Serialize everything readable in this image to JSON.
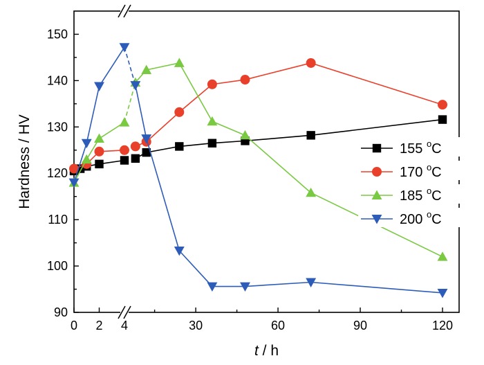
{
  "chart_data": {
    "type": "line",
    "xlabel_italic": "t",
    "xlabel_rest": " / h",
    "ylabel": "Hardness / HV",
    "ylim": [
      90,
      155
    ],
    "yticks": [
      90,
      100,
      110,
      120,
      130,
      140,
      150
    ],
    "x_axis_segments": [
      {
        "range": [
          0,
          4
        ],
        "ticks": [
          0,
          2,
          4
        ]
      },
      {
        "range": [
          4,
          120
        ],
        "ticks": [
          30,
          60,
          90,
          120
        ]
      }
    ],
    "axis_break": "//",
    "grid": false,
    "legend_position": "right",
    "series": [
      {
        "name": "155",
        "unit_sup": "o",
        "unit": "C",
        "color": "#000000",
        "marker": "square",
        "points": [
          [
            0,
            120.5
          ],
          [
            0.5,
            121
          ],
          [
            1,
            121.5
          ],
          [
            2,
            122
          ],
          [
            4,
            122.8
          ],
          [
            8,
            123.2
          ],
          [
            12,
            124.5
          ],
          [
            24,
            125.8
          ],
          [
            36,
            126.5
          ],
          [
            48,
            127
          ],
          [
            72,
            128.2
          ],
          [
            120,
            131.6
          ]
        ]
      },
      {
        "name": "170",
        "unit_sup": "o",
        "unit": "C",
        "color": "#e8402a",
        "marker": "circle",
        "points": [
          [
            0,
            121
          ],
          [
            1,
            122
          ],
          [
            2,
            124.7
          ],
          [
            4,
            125
          ],
          [
            8,
            125.8
          ],
          [
            12,
            126.8
          ],
          [
            24,
            133.2
          ],
          [
            36,
            139.2
          ],
          [
            48,
            140.2
          ],
          [
            72,
            143.8
          ],
          [
            120,
            134.8
          ]
        ]
      },
      {
        "name": "185",
        "unit_sup": "o",
        "unit": "C",
        "color": "#7ac943",
        "marker": "triangle-up",
        "points": [
          [
            0,
            118
          ],
          [
            1,
            123
          ],
          [
            2,
            127.5
          ],
          [
            4,
            131
          ],
          [
            8,
            139.6
          ],
          [
            12,
            142.3
          ],
          [
            24,
            143.8
          ],
          [
            36,
            131.2
          ],
          [
            48,
            128.2
          ],
          [
            72,
            115.8
          ],
          [
            120,
            102
          ]
        ]
      },
      {
        "name": "200",
        "unit_sup": "o",
        "unit": "C",
        "color": "#2d5cb8",
        "marker": "triangle-down",
        "points": [
          [
            0,
            118
          ],
          [
            1,
            126.5
          ],
          [
            2,
            138.8
          ],
          [
            4,
            147.2
          ],
          [
            8,
            139
          ],
          [
            12,
            127.5
          ],
          [
            24,
            103.3
          ],
          [
            36,
            95.6
          ],
          [
            48,
            95.6
          ],
          [
            72,
            96.5
          ],
          [
            120,
            94.2
          ]
        ]
      }
    ]
  }
}
